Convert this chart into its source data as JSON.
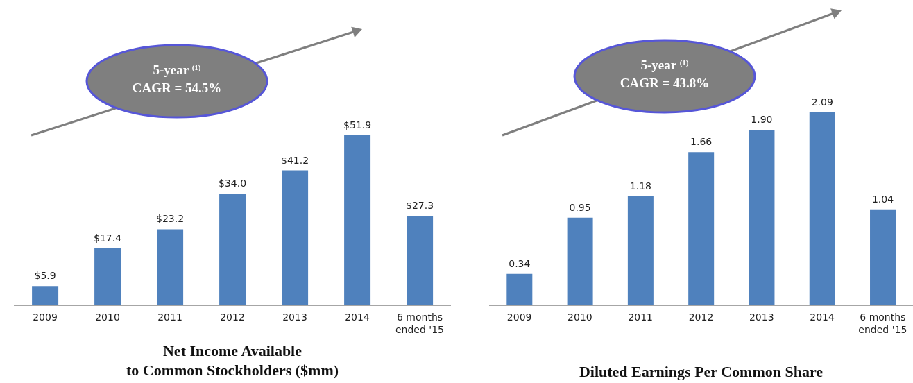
{
  "chart_data": [
    {
      "type": "bar",
      "title": "Net Income Available\nto Common Stockholders ($mm)",
      "categories": [
        "2009",
        "2010",
        "2011",
        "2012",
        "2013",
        "2014",
        "6 months ended '15"
      ],
      "values": [
        5.9,
        17.4,
        23.2,
        34.0,
        41.2,
        51.9,
        27.3
      ],
      "value_labels": [
        "$5.9",
        "$17.4",
        "$23.2",
        "$34.0",
        "$41.2",
        "$51.9",
        "$27.3"
      ],
      "color": "#4f81bd",
      "annotations": [
        "5-year $^{(1)}$\nCAGR = 54.5%"
      ]
    },
    {
      "type": "bar",
      "title": "Diluted Earnings Per Common Share",
      "categories": [
        "2009",
        "2010",
        "2011",
        "2012",
        "2013",
        "2014",
        "6 months ended '15"
      ],
      "values": [
        0.34,
        0.95,
        1.18,
        1.66,
        1.9,
        2.09,
        1.04
      ],
      "value_labels": [
        "0.34",
        "0.95",
        "1.18",
        "1.66",
        "1.90",
        "2.09",
        "1.04"
      ],
      "color": "#4f81bd",
      "annotations": [
        "5-year $^{(1)}$\nCAGR = 43.8%"
      ]
    }
  ]
}
